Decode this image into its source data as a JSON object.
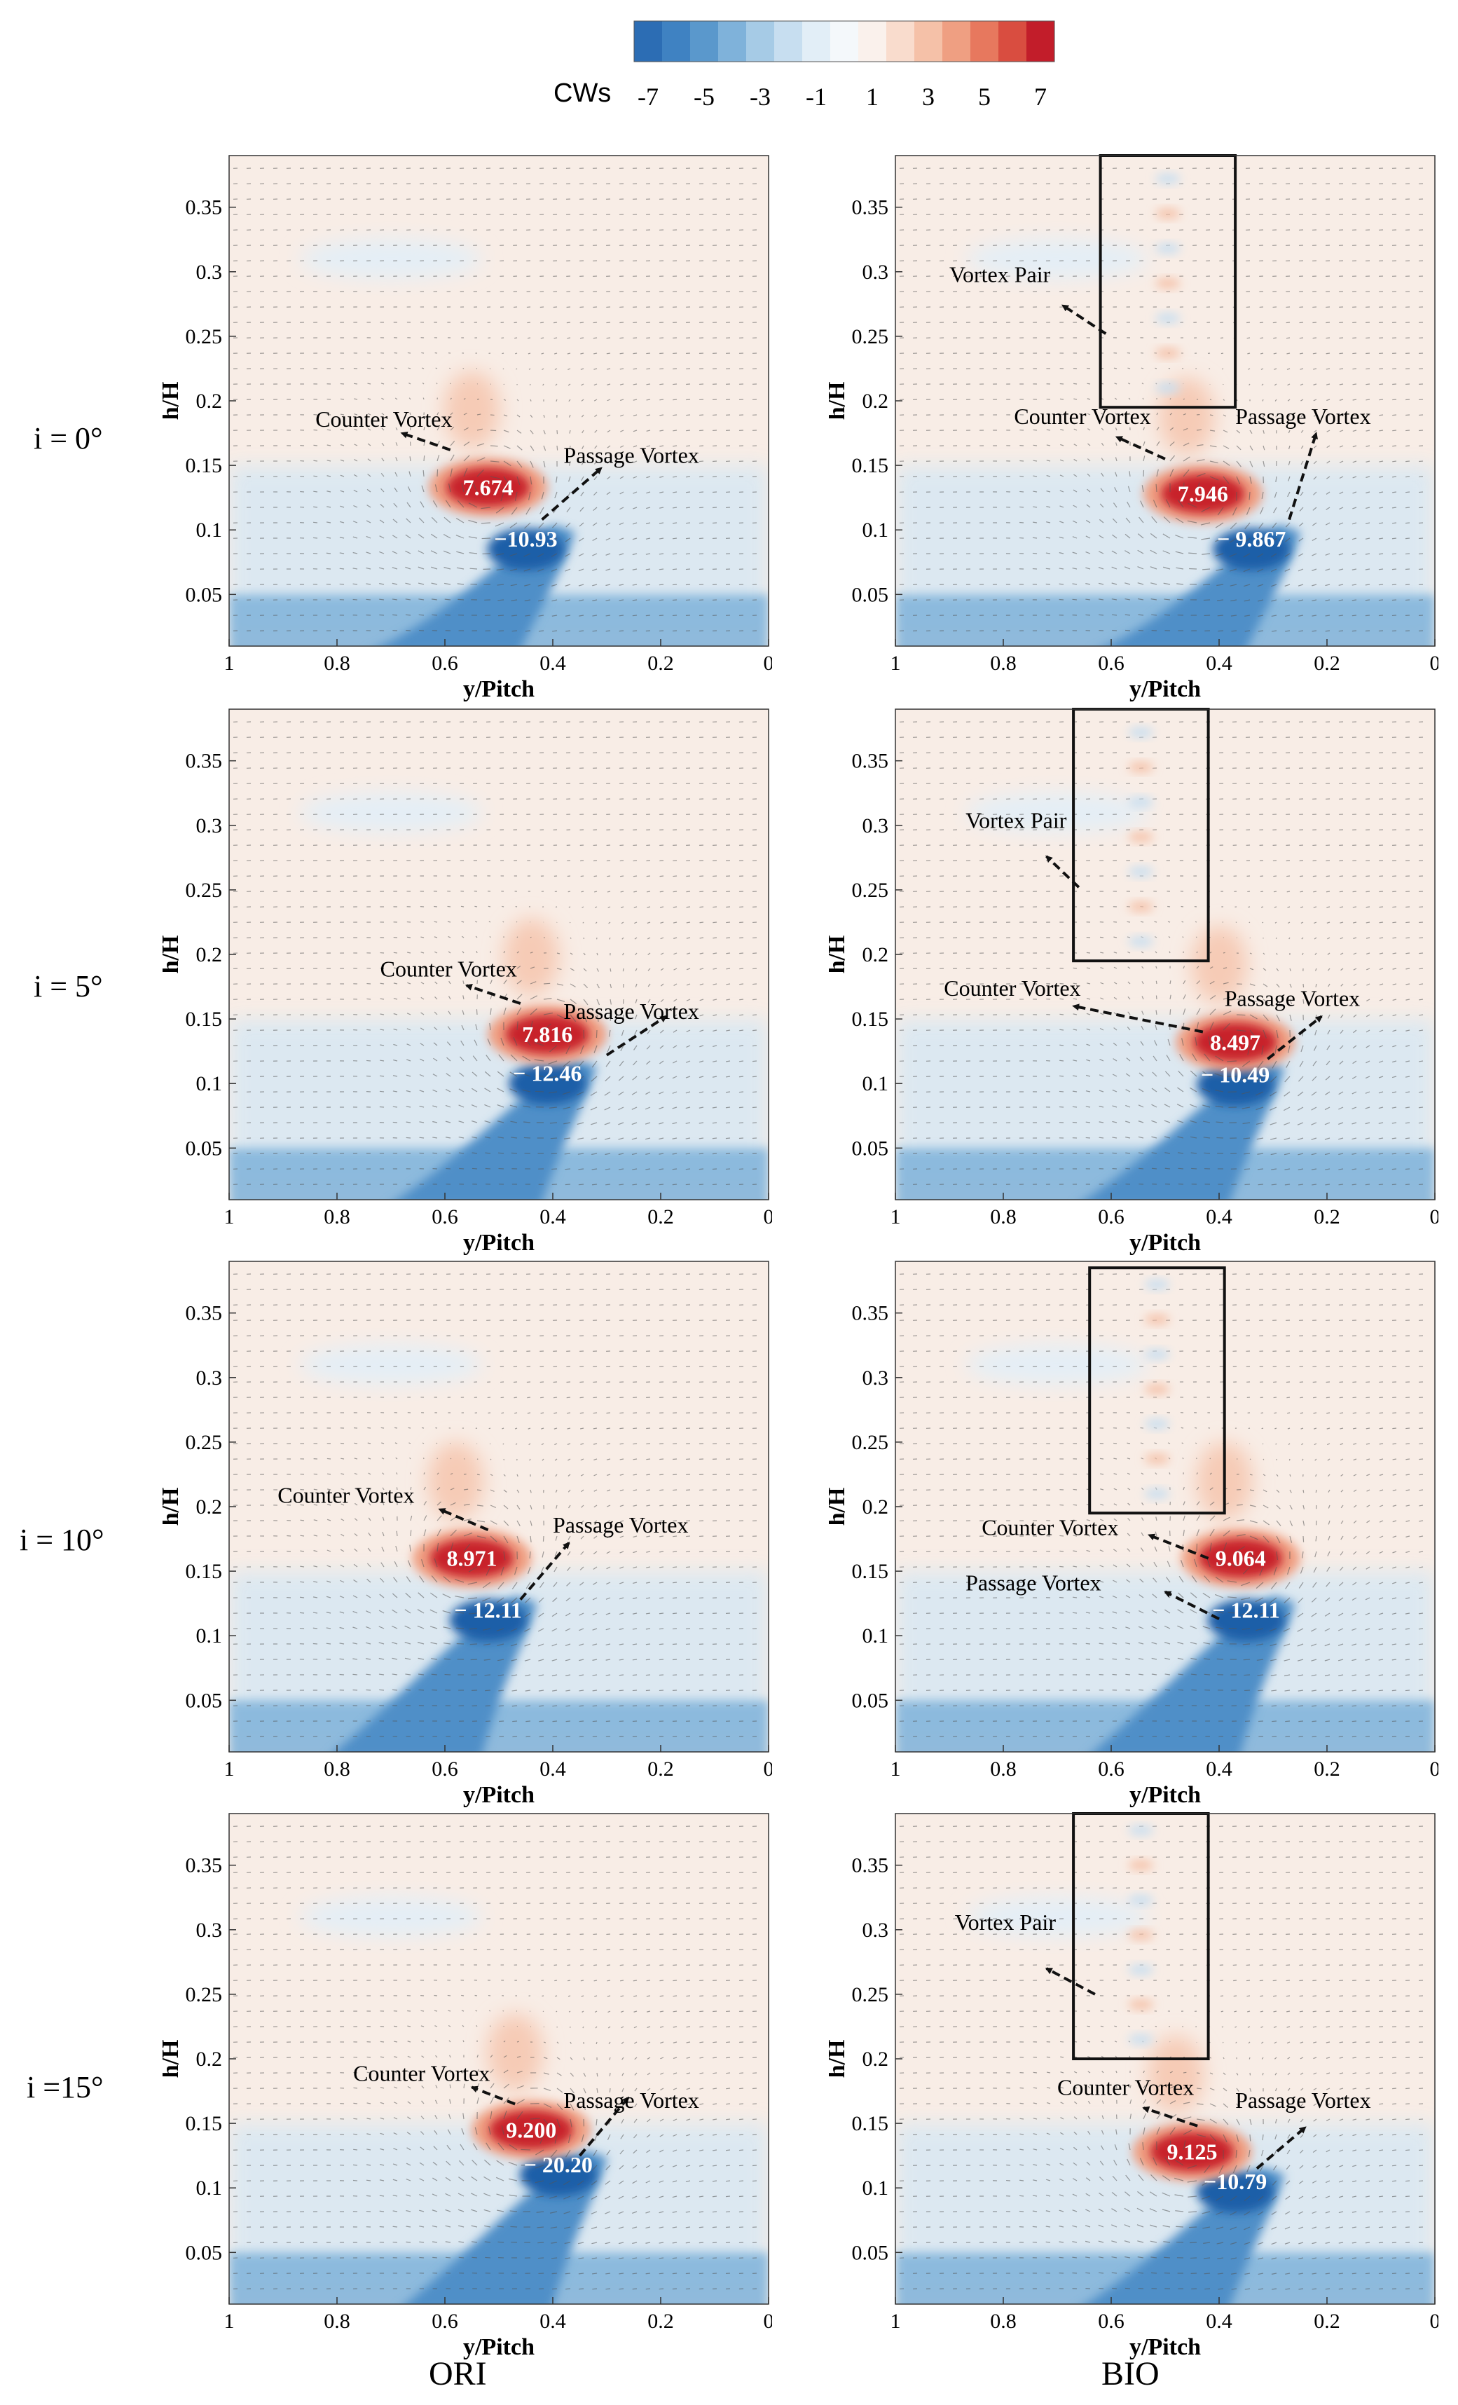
{
  "colorbar": {
    "label": "CWs",
    "tick_labels": [
      "-7",
      "-5",
      "-3",
      "-1",
      "1",
      "3",
      "5",
      "7"
    ],
    "colors": [
      "#2c6db4",
      "#3f82c2",
      "#5a98cc",
      "#7fb2da",
      "#a6cbe6",
      "#c7def0",
      "#e2eef7",
      "#f4f8fb",
      "#faf1ec",
      "#f9dccd",
      "#f5c1a8",
      "#ef9f82",
      "#e7785e",
      "#d94d40",
      "#c21d2a"
    ]
  },
  "row_labels": [
    "i = 0°",
    "i = 5°",
    "i = 10°",
    "i =15°"
  ],
  "column_labels": [
    "ORI",
    "BIO"
  ],
  "colors": {
    "positive": "#c8202a",
    "negative": "#1f5fa8",
    "background": "#f8ede6"
  },
  "chart_data": [
    {
      "type": "heatmap",
      "row": "i = 0°",
      "column": "ORI",
      "xlabel": "y/Pitch",
      "ylabel": "h/H",
      "xlim": [
        1,
        0
      ],
      "ylim": [
        0.01,
        0.39
      ],
      "xticks": [
        "1",
        "0.8",
        "0.6",
        "0.4",
        "0.2",
        "0"
      ],
      "yticks": [
        "0.05",
        "0.1",
        "0.15",
        "0.2",
        "0.25",
        "0.3",
        "0.35"
      ],
      "max_value": 7.674,
      "max_label": "7.674",
      "max_pos": {
        "x": 0.52,
        "y": 0.133
      },
      "min_value": -10.93,
      "min_label": "−10.93",
      "min_pos": {
        "x": 0.45,
        "y": 0.093
      },
      "annotations": [
        {
          "text": "Counter Vortex",
          "text_pos": {
            "x": 0.84,
            "y": 0.18
          },
          "arrow_from": {
            "x": 0.59,
            "y": 0.162
          },
          "arrow_to": {
            "x": 0.68,
            "y": 0.175
          }
        },
        {
          "text": "Passage Vortex",
          "text_pos": {
            "x": 0.38,
            "y": 0.152
          },
          "arrow_from": {
            "x": 0.42,
            "y": 0.108
          },
          "arrow_to": {
            "x": 0.31,
            "y": 0.148
          }
        }
      ],
      "box": null
    },
    {
      "type": "heatmap",
      "row": "i = 0°",
      "column": "BIO",
      "xlabel": "y/Pitch",
      "ylabel": "h/H",
      "xlim": [
        1,
        0
      ],
      "ylim": [
        0.01,
        0.39
      ],
      "xticks": [
        "1",
        "0.8",
        "0.6",
        "0.4",
        "0.2",
        "0"
      ],
      "yticks": [
        "0.05",
        "0.1",
        "0.15",
        "0.2",
        "0.25",
        "0.3",
        "0.35"
      ],
      "max_value": 7.946,
      "max_label": "7.946",
      "max_pos": {
        "x": 0.43,
        "y": 0.128
      },
      "min_value": -9.867,
      "min_label": "− 9.867",
      "min_pos": {
        "x": 0.34,
        "y": 0.093
      },
      "annotations": [
        {
          "text": "Vortex Pair",
          "text_pos": {
            "x": 0.9,
            "y": 0.292
          },
          "arrow_from": {
            "x": 0.61,
            "y": 0.252
          },
          "arrow_to": {
            "x": 0.69,
            "y": 0.274
          }
        },
        {
          "text": "Counter Vortex",
          "text_pos": {
            "x": 0.78,
            "y": 0.182
          },
          "arrow_from": {
            "x": 0.5,
            "y": 0.155
          },
          "arrow_to": {
            "x": 0.59,
            "y": 0.172
          }
        },
        {
          "text": "Passage Vortex",
          "text_pos": {
            "x": 0.37,
            "y": 0.182
          },
          "arrow_from": {
            "x": 0.27,
            "y": 0.108
          },
          "arrow_to": {
            "x": 0.22,
            "y": 0.175
          }
        }
      ],
      "box": {
        "x0": 0.62,
        "x1": 0.37,
        "y0": 0.195,
        "y1": 0.39
      }
    },
    {
      "type": "heatmap",
      "row": "i = 5°",
      "column": "ORI",
      "xlabel": "y/Pitch",
      "ylabel": "h/H",
      "xlim": [
        1,
        0
      ],
      "ylim": [
        0.01,
        0.39
      ],
      "xticks": [
        "1",
        "0.8",
        "0.6",
        "0.4",
        "0.2",
        "0"
      ],
      "yticks": [
        "0.05",
        "0.1",
        "0.15",
        "0.2",
        "0.25",
        "0.3",
        "0.35"
      ],
      "max_value": 7.816,
      "max_label": "7.816",
      "max_pos": {
        "x": 0.41,
        "y": 0.138
      },
      "min_value": -12.46,
      "min_label": "− 12.46",
      "min_pos": {
        "x": 0.41,
        "y": 0.108
      },
      "annotations": [
        {
          "text": "Counter Vortex",
          "text_pos": {
            "x": 0.72,
            "y": 0.183
          },
          "arrow_from": {
            "x": 0.46,
            "y": 0.162
          },
          "arrow_to": {
            "x": 0.56,
            "y": 0.176
          }
        },
        {
          "text": "Passage Vortex",
          "text_pos": {
            "x": 0.38,
            "y": 0.15
          },
          "arrow_from": {
            "x": 0.3,
            "y": 0.122
          },
          "arrow_to": {
            "x": 0.19,
            "y": 0.152
          }
        }
      ],
      "box": null
    },
    {
      "type": "heatmap",
      "row": "i = 5°",
      "column": "BIO",
      "xlabel": "y/Pitch",
      "ylabel": "h/H",
      "xlim": [
        1,
        0
      ],
      "ylim": [
        0.01,
        0.39
      ],
      "xticks": [
        "1",
        "0.8",
        "0.6",
        "0.4",
        "0.2",
        "0"
      ],
      "yticks": [
        "0.05",
        "0.1",
        "0.15",
        "0.2",
        "0.25",
        "0.3",
        "0.35"
      ],
      "max_value": 8.497,
      "max_label": "8.497",
      "max_pos": {
        "x": 0.37,
        "y": 0.132
      },
      "min_value": -10.49,
      "min_label": "− 10.49",
      "min_pos": {
        "x": 0.37,
        "y": 0.107
      },
      "annotations": [
        {
          "text": "Vortex Pair",
          "text_pos": {
            "x": 0.87,
            "y": 0.298
          },
          "arrow_from": {
            "x": 0.66,
            "y": 0.252
          },
          "arrow_to": {
            "x": 0.72,
            "y": 0.276
          }
        },
        {
          "text": "Counter Vortex",
          "text_pos": {
            "x": 0.91,
            "y": 0.168
          },
          "arrow_from": {
            "x": 0.43,
            "y": 0.14
          },
          "arrow_to": {
            "x": 0.67,
            "y": 0.16
          }
        },
        {
          "text": "Passage Vortex",
          "text_pos": {
            "x": 0.39,
            "y": 0.16
          },
          "arrow_from": {
            "x": 0.31,
            "y": 0.119
          },
          "arrow_to": {
            "x": 0.21,
            "y": 0.152
          }
        }
      ],
      "box": {
        "x0": 0.67,
        "x1": 0.42,
        "y0": 0.195,
        "y1": 0.39
      }
    },
    {
      "type": "heatmap",
      "row": "i = 10°",
      "column": "ORI",
      "xlabel": "y/Pitch",
      "ylabel": "h/H",
      "xlim": [
        1,
        0
      ],
      "ylim": [
        0.01,
        0.39
      ],
      "xticks": [
        "1",
        "0.8",
        "0.6",
        "0.4",
        "0.2",
        "0"
      ],
      "yticks": [
        "0.05",
        "0.1",
        "0.15",
        "0.2",
        "0.25",
        "0.3",
        "0.35"
      ],
      "max_value": 8.971,
      "max_label": "8.971",
      "max_pos": {
        "x": 0.55,
        "y": 0.16
      },
      "min_value": -12.11,
      "min_label": "− 12.11",
      "min_pos": {
        "x": 0.52,
        "y": 0.12
      },
      "annotations": [
        {
          "text": "Counter Vortex",
          "text_pos": {
            "x": 0.91,
            "y": 0.203
          },
          "arrow_from": {
            "x": 0.52,
            "y": 0.182
          },
          "arrow_to": {
            "x": 0.61,
            "y": 0.198
          }
        },
        {
          "text": "Passage Vortex",
          "text_pos": {
            "x": 0.4,
            "y": 0.18
          },
          "arrow_from": {
            "x": 0.46,
            "y": 0.128
          },
          "arrow_to": {
            "x": 0.37,
            "y": 0.172
          }
        }
      ],
      "box": null
    },
    {
      "type": "heatmap",
      "row": "i = 10°",
      "column": "BIO",
      "xlabel": "y/Pitch",
      "ylabel": "h/H",
      "xlim": [
        1,
        0
      ],
      "ylim": [
        0.01,
        0.39
      ],
      "xticks": [
        "1",
        "0.8",
        "0.6",
        "0.4",
        "0.2",
        "0"
      ],
      "yticks": [
        "0.05",
        "0.1",
        "0.15",
        "0.2",
        "0.25",
        "0.3",
        "0.35"
      ],
      "max_value": 9.064,
      "max_label": "9.064",
      "max_pos": {
        "x": 0.36,
        "y": 0.16
      },
      "min_value": -12.11,
      "min_label": "− 12.11",
      "min_pos": {
        "x": 0.35,
        "y": 0.12
      },
      "annotations": [
        {
          "text": "Counter Vortex",
          "text_pos": {
            "x": 0.84,
            "y": 0.178
          },
          "arrow_from": {
            "x": 0.42,
            "y": 0.16
          },
          "arrow_to": {
            "x": 0.53,
            "y": 0.178
          }
        },
        {
          "text": "Passage Vortex",
          "text_pos": {
            "x": 0.87,
            "y": 0.135
          },
          "arrow_from": {
            "x": 0.4,
            "y": 0.113
          },
          "arrow_to": {
            "x": 0.5,
            "y": 0.134
          }
        }
      ],
      "box": {
        "x0": 0.64,
        "x1": 0.39,
        "y0": 0.195,
        "y1": 0.385
      }
    },
    {
      "type": "heatmap",
      "row": "i =15°",
      "column": "ORI",
      "xlabel": "y/Pitch",
      "ylabel": "h/H",
      "xlim": [
        1,
        0
      ],
      "ylim": [
        0.01,
        0.39
      ],
      "xticks": [
        "1",
        "0.8",
        "0.6",
        "0.4",
        "0.2",
        "0"
      ],
      "yticks": [
        "0.05",
        "0.1",
        "0.15",
        "0.2",
        "0.25",
        "0.3",
        "0.35"
      ],
      "max_value": 9.2,
      "max_label": "9.200",
      "max_pos": {
        "x": 0.44,
        "y": 0.145
      },
      "min_value": -20.2,
      "min_label": "− 20.20",
      "min_pos": {
        "x": 0.39,
        "y": 0.118
      },
      "annotations": [
        {
          "text": "Counter Vortex",
          "text_pos": {
            "x": 0.77,
            "y": 0.183
          },
          "arrow_from": {
            "x": 0.47,
            "y": 0.165
          },
          "arrow_to": {
            "x": 0.55,
            "y": 0.178
          }
        },
        {
          "text": "Passage Vortex",
          "text_pos": {
            "x": 0.38,
            "y": 0.162
          },
          "arrow_from": {
            "x": 0.35,
            "y": 0.125
          },
          "arrow_to": {
            "x": 0.26,
            "y": 0.17
          }
        }
      ],
      "box": null
    },
    {
      "type": "heatmap",
      "row": "i =15°",
      "column": "BIO",
      "xlabel": "y/Pitch",
      "ylabel": "h/H",
      "xlim": [
        1,
        0
      ],
      "ylim": [
        0.01,
        0.39
      ],
      "xticks": [
        "1",
        "0.8",
        "0.6",
        "0.4",
        "0.2",
        "0"
      ],
      "yticks": [
        "0.05",
        "0.1",
        "0.15",
        "0.2",
        "0.25",
        "0.3",
        "0.35"
      ],
      "max_value": 9.125,
      "max_label": "9.125",
      "max_pos": {
        "x": 0.45,
        "y": 0.128
      },
      "min_value": -10.79,
      "min_label": "−10.79",
      "min_pos": {
        "x": 0.37,
        "y": 0.105
      },
      "annotations": [
        {
          "text": "Vortex Pair",
          "text_pos": {
            "x": 0.89,
            "y": 0.3
          },
          "arrow_from": {
            "x": 0.63,
            "y": 0.25
          },
          "arrow_to": {
            "x": 0.72,
            "y": 0.27
          }
        },
        {
          "text": "Counter Vortex",
          "text_pos": {
            "x": 0.7,
            "y": 0.172
          },
          "arrow_from": {
            "x": 0.44,
            "y": 0.148
          },
          "arrow_to": {
            "x": 0.54,
            "y": 0.162
          }
        },
        {
          "text": "Passage Vortex",
          "text_pos": {
            "x": 0.37,
            "y": 0.162
          },
          "arrow_from": {
            "x": 0.33,
            "y": 0.115
          },
          "arrow_to": {
            "x": 0.24,
            "y": 0.147
          }
        }
      ],
      "box": {
        "x0": 0.67,
        "x1": 0.42,
        "y0": 0.2,
        "y1": 0.39
      }
    }
  ]
}
